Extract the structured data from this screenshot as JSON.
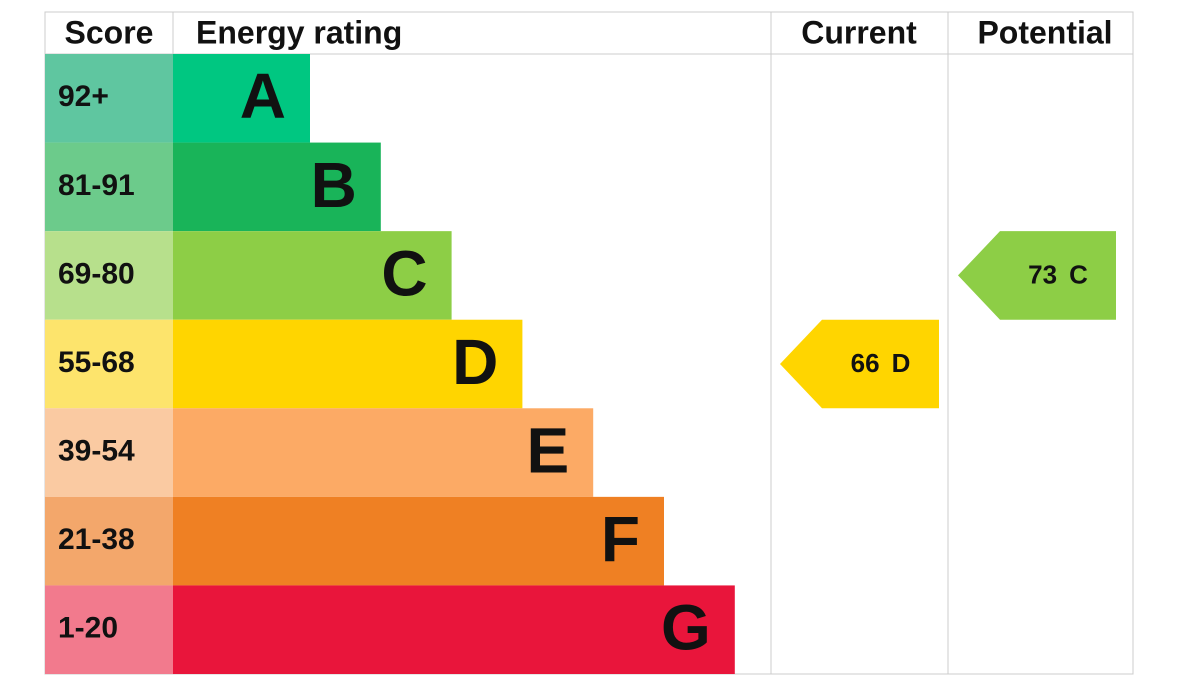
{
  "header": {
    "score": "Score",
    "rating": "Energy rating",
    "current": "Current",
    "potential": "Potential"
  },
  "bands": [
    {
      "score": "92+",
      "letter": "A",
      "score_color": "#5fc6a0",
      "color": "#00c781"
    },
    {
      "score": "81-91",
      "letter": "B",
      "score_color": "#6ccb8b",
      "color": "#19b459"
    },
    {
      "score": "69-80",
      "letter": "C",
      "score_color": "#b7e08c",
      "color": "#8dce46"
    },
    {
      "score": "55-68",
      "letter": "D",
      "score_color": "#fde46c",
      "color": "#ffd500"
    },
    {
      "score": "39-54",
      "letter": "E",
      "score_color": "#facaa2",
      "color": "#fcaa65"
    },
    {
      "score": "21-38",
      "letter": "F",
      "score_color": "#f3a76b",
      "color": "#ef8023"
    },
    {
      "score": "1-20",
      "letter": "G",
      "score_color": "#f27a8d",
      "color": "#e9153b"
    }
  ],
  "current": {
    "value": 66,
    "letter": "D"
  },
  "potential": {
    "value": 73,
    "letter": "C"
  }
}
